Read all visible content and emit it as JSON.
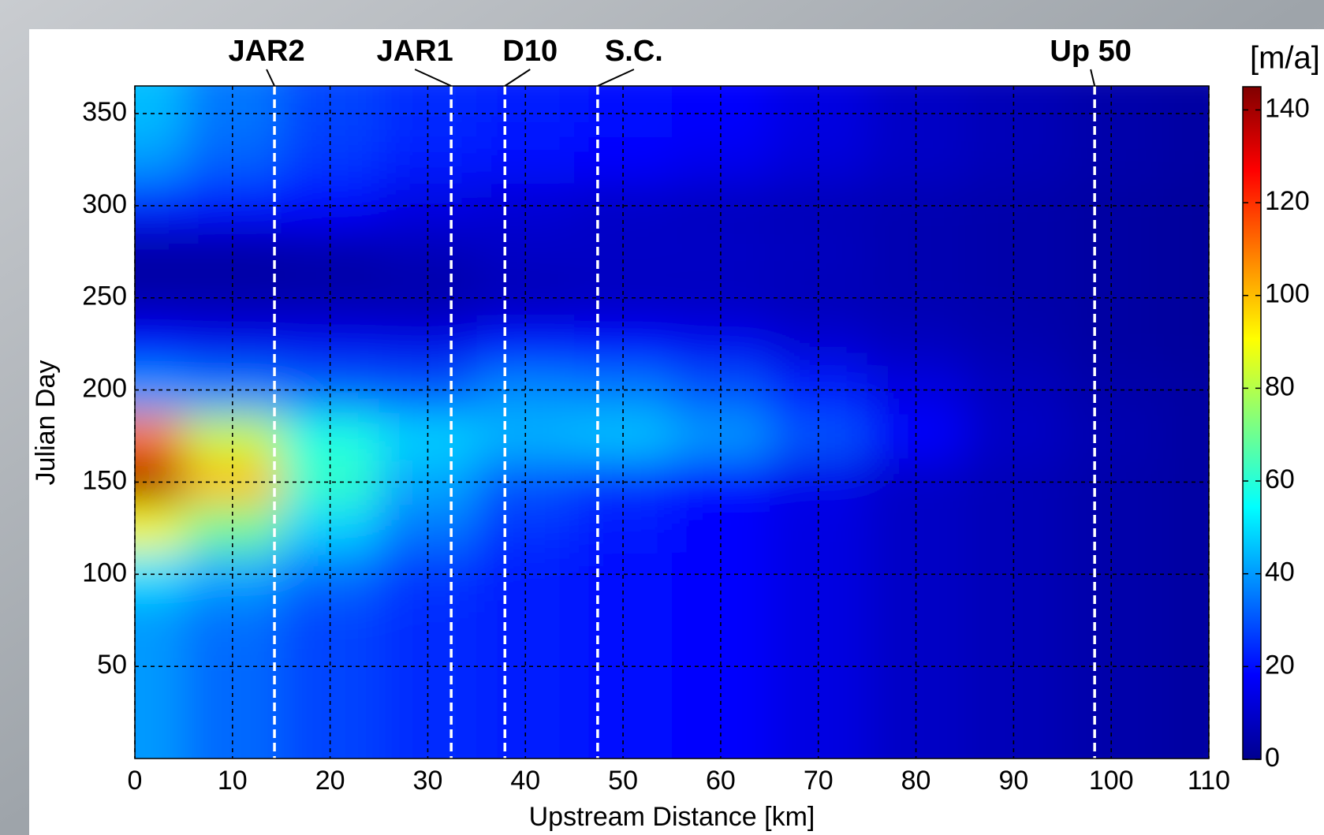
{
  "chart_data": {
    "type": "heatmap",
    "xlabel": "Upstream Distance [km]",
    "ylabel": "Julian Day",
    "colorbar_label": "[m/a]",
    "x": [
      0,
      10,
      20,
      30,
      40,
      50,
      60,
      70,
      80,
      90,
      100,
      110
    ],
    "y": [
      0,
      25,
      50,
      75,
      100,
      125,
      150,
      175,
      200,
      225,
      250,
      275,
      300,
      325,
      350
    ],
    "z": [
      [
        40,
        33,
        28,
        24,
        22,
        20,
        18,
        14,
        10,
        8,
        6,
        5
      ],
      [
        40,
        33,
        28,
        24,
        22,
        20,
        18,
        14,
        10,
        8,
        6,
        5
      ],
      [
        40,
        33,
        28,
        24,
        22,
        20,
        18,
        14,
        10,
        8,
        6,
        5
      ],
      [
        40,
        34,
        28,
        24,
        22,
        20,
        18,
        14,
        10,
        8,
        6,
        5
      ],
      [
        50,
        42,
        34,
        26,
        22,
        20,
        18,
        14,
        10,
        8,
        6,
        5
      ],
      [
        90,
        70,
        48,
        35,
        25,
        21,
        18,
        14,
        10,
        8,
        6,
        5
      ],
      [
        140,
        100,
        62,
        42,
        30,
        25,
        20,
        15,
        10,
        8,
        6,
        5
      ],
      [
        110,
        82,
        58,
        48,
        44,
        46,
        40,
        30,
        18,
        10,
        7,
        5
      ],
      [
        40,
        36,
        32,
        30,
        38,
        36,
        30,
        22,
        14,
        9,
        6,
        5
      ],
      [
        18,
        16,
        16,
        15,
        20,
        18,
        16,
        12,
        9,
        7,
        5,
        4
      ],
      [
        6,
        6,
        6,
        6,
        8,
        9,
        9,
        8,
        7,
        6,
        5,
        4
      ],
      [
        5,
        5,
        6,
        8,
        10,
        10,
        10,
        9,
        7,
        6,
        5,
        4
      ],
      [
        22,
        20,
        18,
        14,
        12,
        10,
        9,
        8,
        7,
        6,
        5,
        4
      ],
      [
        40,
        32,
        26,
        22,
        20,
        18,
        16,
        13,
        10,
        8,
        6,
        5
      ],
      [
        45,
        35,
        28,
        24,
        22,
        20,
        18,
        14,
        10,
        8,
        6,
        5
      ]
    ],
    "xlim": [
      0,
      110
    ],
    "xticks": [
      0,
      10,
      20,
      30,
      40,
      50,
      60,
      70,
      80,
      90,
      100,
      110
    ],
    "ylim": [
      0,
      365
    ],
    "yticks": [
      50,
      100,
      150,
      200,
      250,
      300,
      350
    ],
    "clim": [
      0,
      145
    ],
    "cticks": [
      0,
      20,
      40,
      60,
      80,
      100,
      120,
      140
    ],
    "colormap": "jet",
    "grid": true,
    "markers": [
      {
        "label": "JAR2",
        "x": 14.3
      },
      {
        "label": "JAR1",
        "x": 32.4
      },
      {
        "label": "D10",
        "x": 37.9
      },
      {
        "label": "S.C.",
        "x": 47.4
      },
      {
        "label": "Up 50",
        "x": 98.3
      }
    ]
  }
}
